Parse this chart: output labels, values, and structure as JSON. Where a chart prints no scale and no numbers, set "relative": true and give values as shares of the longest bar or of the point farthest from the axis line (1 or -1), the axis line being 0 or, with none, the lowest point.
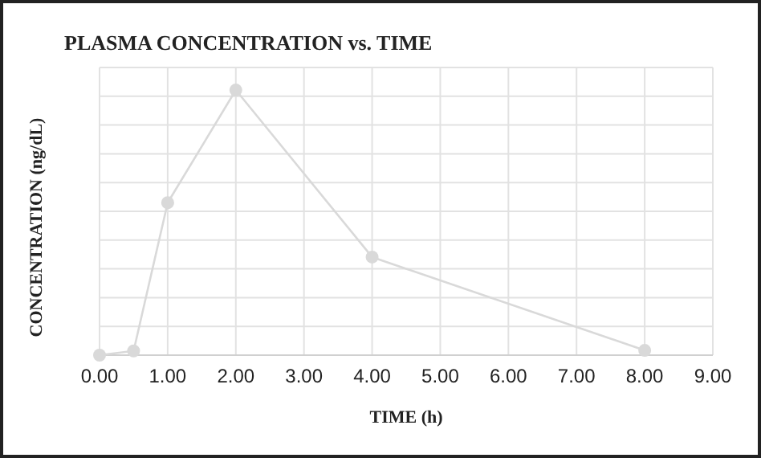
{
  "chart_data": {
    "type": "line",
    "title": "PLASMA CONCENTRATION vs. TIME",
    "xlabel": "TIME (h)",
    "ylabel": "CONCENTRATION (ng/dL)",
    "x": [
      0,
      0.5,
      1,
      2,
      4,
      8
    ],
    "series": [
      {
        "color": "#d9d9d9",
        "values": [
          0,
          0.016,
          0.575,
          1,
          0.37,
          0.018
        ]
      }
    ],
    "relative": true,
    "xlim": [
      0,
      9
    ],
    "xticks": [
      {
        "value": 0,
        "label": "0.00"
      },
      {
        "value": 1,
        "label": "1.00"
      },
      {
        "value": 2,
        "label": "2.00"
      },
      {
        "value": 3,
        "label": "3.00"
      },
      {
        "value": 4,
        "label": "4.00"
      },
      {
        "value": 5,
        "label": "5.00"
      },
      {
        "value": 6,
        "label": "6.00"
      },
      {
        "value": 7,
        "label": "7.00"
      },
      {
        "value": 8,
        "label": "8.00"
      },
      {
        "value": 9,
        "label": "9.00"
      }
    ],
    "grid": true,
    "marker": "circle",
    "line_style": "solid"
  }
}
